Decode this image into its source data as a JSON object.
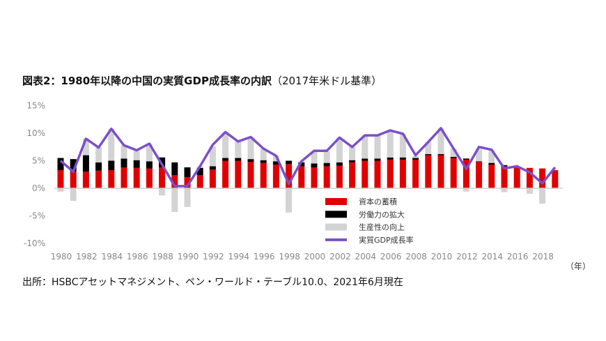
{
  "chart_data": {
    "type": "bar",
    "stacked": true,
    "title": "図表2：1980年以降の中国の実質GDP成長率の内訳",
    "subtitle": "（2017年米ドル基準）",
    "xlabel": "（年）",
    "ylabel": "",
    "ylim": [
      -10,
      15
    ],
    "yticks": [
      "15%",
      "10%",
      "5%",
      "0%",
      "-5%",
      "-10%"
    ],
    "ytick_values": [
      15,
      10,
      5,
      0,
      -5,
      -10
    ],
    "xtick_labels": [
      "1980",
      "1982",
      "1984",
      "1986",
      "1988",
      "1990",
      "1992",
      "1994",
      "1996",
      "1998",
      "2000",
      "2002",
      "2004",
      "2006",
      "2008",
      "2010",
      "2012",
      "2014",
      "2016",
      "2018"
    ],
    "legend_position": "bottom-center",
    "categories": [
      1980,
      1981,
      1982,
      1983,
      1984,
      1985,
      1986,
      1987,
      1988,
      1989,
      1990,
      1991,
      1992,
      1993,
      1994,
      1995,
      1996,
      1997,
      1998,
      1999,
      2000,
      2001,
      2002,
      2003,
      2004,
      2005,
      2006,
      2007,
      2008,
      2009,
      2010,
      2011,
      2012,
      2013,
      2014,
      2015,
      2016,
      2017,
      2018,
      2019
    ],
    "series": [
      {
        "name": "資本の蓄積",
        "kind": "bar",
        "color": "#e00000",
        "values": [
          3.3,
          3.0,
          3.0,
          3.2,
          3.3,
          3.8,
          3.7,
          3.6,
          3.8,
          2.4,
          2.0,
          2.4,
          3.4,
          5.0,
          5.0,
          4.8,
          4.6,
          4.3,
          4.4,
          4.0,
          3.8,
          4.0,
          4.1,
          4.7,
          5.0,
          5.0,
          5.2,
          5.2,
          5.2,
          6.0,
          6.0,
          5.5,
          5.2,
          4.8,
          4.3,
          4.0,
          3.9,
          3.7,
          3.6,
          3.3
        ]
      },
      {
        "name": "労働力の拡大",
        "kind": "bar",
        "color": "#000000",
        "values": [
          2.2,
          2.3,
          3.0,
          1.5,
          1.7,
          1.6,
          1.4,
          1.3,
          1.8,
          2.3,
          1.8,
          1.3,
          0.6,
          0.5,
          0.5,
          0.5,
          0.5,
          0.6,
          0.6,
          0.7,
          0.7,
          0.6,
          0.6,
          0.4,
          0.4,
          0.4,
          0.4,
          0.4,
          0.3,
          0.2,
          0.2,
          0.2,
          0.2,
          0.1,
          0.3,
          0.2,
          0.0,
          0.0,
          0.0,
          0.0
        ]
      },
      {
        "name": "生産性の向上",
        "kind": "bar",
        "color": "#d3d3d3",
        "values": [
          -0.6,
          -2.3,
          3.0,
          2.7,
          5.8,
          2.4,
          1.8,
          3.2,
          -1.3,
          -4.3,
          -3.4,
          0.3,
          3.6,
          4.7,
          3.0,
          4.0,
          2.1,
          1.0,
          -4.4,
          0.2,
          2.2,
          2.1,
          4.5,
          2.4,
          4.2,
          4.2,
          5.0,
          4.3,
          0.4,
          2.2,
          4.7,
          1.5,
          -0.6,
          2.2,
          2.3,
          -0.7,
          0.0,
          -1.0,
          -2.8,
          0.0
        ]
      },
      {
        "name": "実質GDP成長率",
        "kind": "line",
        "color": "#7b4fc9",
        "values": [
          5.0,
          3.0,
          9.0,
          7.4,
          10.8,
          7.8,
          6.9,
          8.1,
          4.3,
          0.4,
          0.4,
          4.0,
          7.9,
          10.2,
          8.5,
          9.3,
          7.2,
          5.9,
          0.8,
          4.9,
          6.8,
          6.8,
          9.2,
          7.5,
          9.6,
          9.6,
          10.5,
          9.9,
          6.0,
          8.4,
          10.9,
          7.2,
          3.5,
          7.5,
          7.0,
          3.6,
          4.0,
          2.9,
          0.9,
          3.8
        ]
      }
    ]
  },
  "source": "出所：HSBCアセットマネジメント、ペン・ワールド・テーブル10.0、2021年6月現在"
}
